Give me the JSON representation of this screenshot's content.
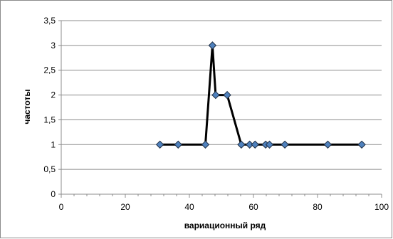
{
  "chart_data": {
    "type": "line",
    "xlabel": "вариационный ряд",
    "ylabel": "частоты",
    "xlim": [
      0,
      100
    ],
    "ylim": [
      0,
      3.5
    ],
    "x_ticks": [
      "0",
      "20",
      "40",
      "60",
      "80",
      "100"
    ],
    "y_ticks": [
      "0",
      "0,5",
      "1",
      "1,5",
      "2",
      "2,5",
      "3",
      "3,5"
    ],
    "grid": "horizontal",
    "legend": "none",
    "series": [
      {
        "line_color": "#000000",
        "marker": "diamond",
        "marker_color": "#4f81bd",
        "points": [
          {
            "x": 30.8,
            "y": 1
          },
          {
            "x": 36.5,
            "y": 1
          },
          {
            "x": 45.0,
            "y": 1
          },
          {
            "x": 47.2,
            "y": 3
          },
          {
            "x": 48.2,
            "y": 2
          },
          {
            "x": 51.8,
            "y": 2
          },
          {
            "x": 56.2,
            "y": 1
          },
          {
            "x": 58.8,
            "y": 1
          },
          {
            "x": 60.5,
            "y": 1
          },
          {
            "x": 63.8,
            "y": 1
          },
          {
            "x": 65.0,
            "y": 1
          },
          {
            "x": 69.8,
            "y": 1
          },
          {
            "x": 83.2,
            "y": 1
          },
          {
            "x": 93.8,
            "y": 1
          }
        ]
      }
    ]
  }
}
